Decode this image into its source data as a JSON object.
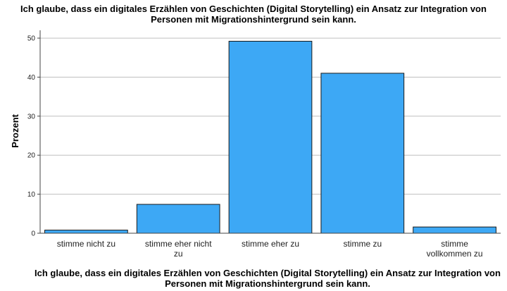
{
  "chart_data": {
    "type": "bar",
    "title": "Ich glaube, dass ein digitales Erzählen von Geschichten (Digital Storytelling) ein Ansatz zur Integration von Personen mit Migrationshintergrund sein kann.",
    "xlabel": "Ich glaube, dass ein digitales Erzählen von Geschichten (Digital Storytelling) ein Ansatz zur Integration von Personen mit Migrationshintergrund sein kann.",
    "ylabel": "Prozent",
    "categories": [
      [
        "stimme nicht zu"
      ],
      [
        "stimme eher nicht",
        "zu"
      ],
      [
        "stimme eher zu"
      ],
      [
        "stimme zu"
      ],
      [
        "stimme",
        "vollkommen zu"
      ]
    ],
    "values": [
      0.8,
      7.4,
      49.2,
      41.0,
      1.6
    ],
    "ylim": [
      0,
      52
    ],
    "yticks": [
      0,
      10,
      20,
      30,
      40,
      50
    ],
    "grid": true,
    "colors": {
      "bar": "#3da8f5",
      "bar_stroke": "#1a1a1a",
      "grid": "#bfbfbf",
      "axis": "#444444"
    }
  }
}
